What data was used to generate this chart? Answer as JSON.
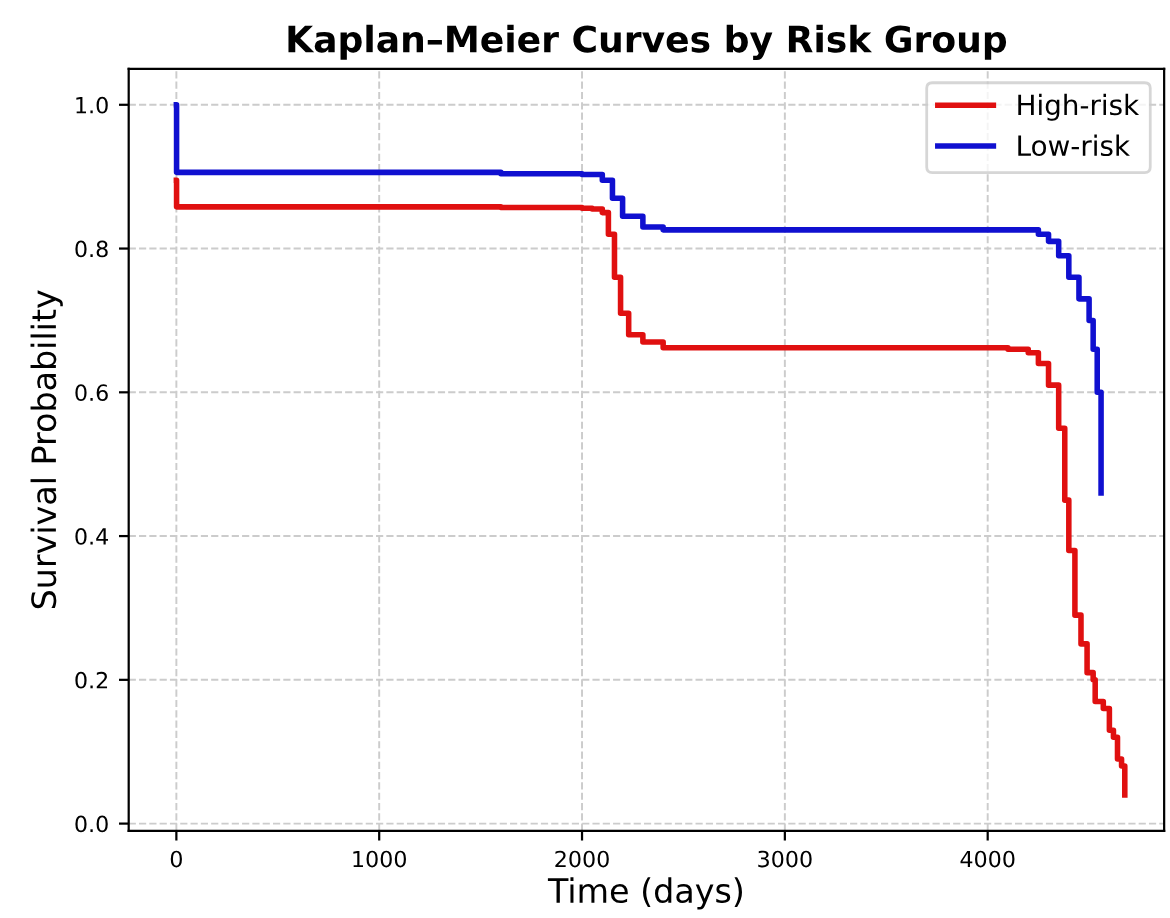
{
  "chart_data": {
    "type": "step",
    "title": "Kaplan–Meier Curves by Risk Group",
    "xlabel": "Time (days)",
    "ylabel": "Survival Probability",
    "xlim": [
      -235,
      4870
    ],
    "ylim": [
      -0.01,
      1.05
    ],
    "xticks": [
      0,
      1000,
      2000,
      3000,
      4000
    ],
    "yticks": [
      {
        "value": 0,
        "label": "0.0"
      },
      0.2,
      0.4,
      0.6,
      0.8,
      {
        "value": 1,
        "label": "1.0"
      }
    ],
    "grid": true,
    "legend": "top right",
    "line_style": "solid",
    "marker": "none",
    "series": [
      {
        "name": "High-risk",
        "color": "#e01010",
        "x": [
          0,
          1,
          1600,
          2000,
          2050,
          2100,
          2130,
          2160,
          2190,
          2230,
          2300,
          2400,
          4000,
          4100,
          4200,
          4250,
          4300,
          4350,
          4380,
          4400,
          4430,
          4460,
          4490,
          4520,
          4530,
          4570,
          4600,
          4620,
          4640,
          4660,
          4676
        ],
        "values": [
          0.895,
          0.858,
          0.857,
          0.856,
          0.855,
          0.85,
          0.82,
          0.76,
          0.71,
          0.68,
          0.67,
          0.662,
          0.662,
          0.66,
          0.655,
          0.64,
          0.61,
          0.55,
          0.45,
          0.38,
          0.29,
          0.25,
          0.21,
          0.2,
          0.17,
          0.16,
          0.13,
          0.12,
          0.09,
          0.08,
          0.04
        ]
      },
      {
        "name": "Low-risk",
        "color": "#1010d0",
        "x": [
          0,
          1,
          1600,
          2000,
          2100,
          2150,
          2200,
          2300,
          2400,
          4100,
          4250,
          4300,
          4350,
          4400,
          4450,
          4500,
          4520,
          4540,
          4559
        ],
        "values": [
          1.0,
          0.906,
          0.904,
          0.903,
          0.895,
          0.87,
          0.845,
          0.83,
          0.826,
          0.826,
          0.82,
          0.81,
          0.79,
          0.76,
          0.73,
          0.7,
          0.66,
          0.6,
          0.46
        ]
      }
    ]
  }
}
